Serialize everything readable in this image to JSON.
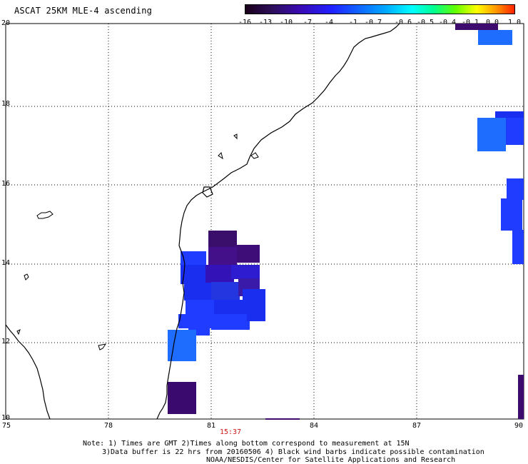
{
  "title": "ASCAT 25KM MLE-4 ascending",
  "colorbar": {
    "labels": [
      "-16",
      "-13",
      "-10",
      "-7",
      "-4",
      "-1",
      "-0.7",
      "-0.6",
      "-0.5",
      "-0.4",
      "-0.1",
      "0.0",
      "1.0"
    ],
    "colors": [
      "#1b001b",
      "#2d0f5a",
      "#3a0ab0",
      "#2020ff",
      "#1064ff",
      "#00a8ff",
      "#00ffff",
      "#00ff90",
      "#60ff00",
      "#ffff00",
      "#ff9a00",
      "#ff2000"
    ]
  },
  "axes": {
    "lat_ticks": [
      "20",
      "18",
      "16",
      "14",
      "12",
      "10"
    ],
    "lon_ticks": [
      "75",
      "78",
      "81",
      "84",
      "87",
      "90"
    ],
    "grid": "dotted"
  },
  "time_label": "15:37",
  "notes": {
    "line1": "Note: 1) Times are GMT 2)Times along bottom correspond to measurement at 15N",
    "line2": "3)Data buffer is 22 hrs from 20160506 4) Black wind barbs indicate possible contamination",
    "line3": "NOAA/NESDIS/Center for Satellite Applications and Research"
  },
  "map_legend": {
    "palette_names": {
      "very_low": "dark purple",
      "low": "indigo",
      "medium": "blue",
      "high": "light blue"
    }
  }
}
